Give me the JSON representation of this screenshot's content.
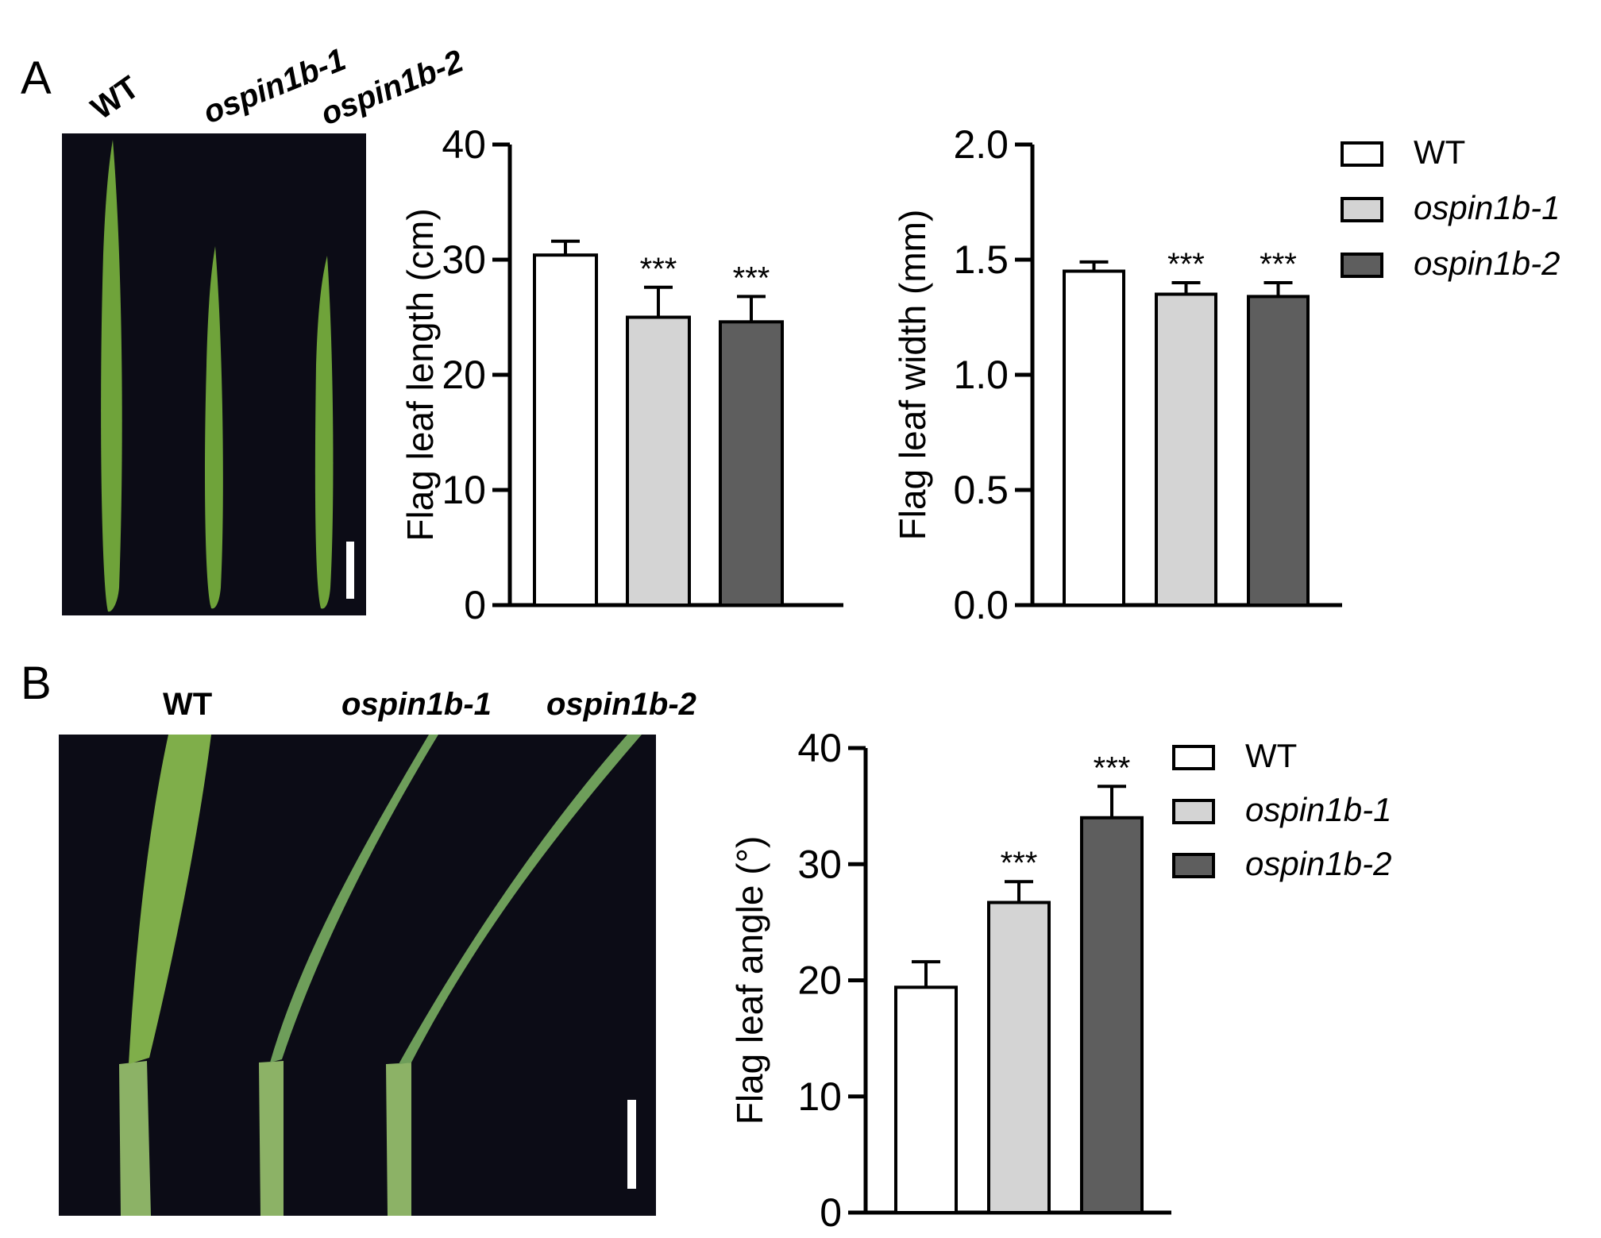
{
  "panels": {
    "A": "A",
    "B": "B"
  },
  "genotypes": [
    "WT",
    "ospin1b-1",
    "ospin1b-2"
  ],
  "colors": {
    "WT": "#ffffff",
    "ospin1b-1": "#d4d4d4",
    "ospin1b-2": "#5e5e5e",
    "photo_background": "#0c0c16",
    "leaf_green": "#6fa33a"
  },
  "chart_data": [
    {
      "type": "bar",
      "panel": "A",
      "categories": [
        "WT",
        "ospin1b-1",
        "ospin1b-2"
      ],
      "values": [
        30.4,
        25.0,
        24.6
      ],
      "errors": [
        1.2,
        2.6,
        2.2
      ],
      "significance": [
        "",
        "***",
        "***"
      ],
      "ylabel": "Flag leaf length (cm)",
      "ylim": [
        0,
        40
      ],
      "yticks": [
        "0",
        "10",
        "20",
        "30",
        "40"
      ],
      "legend": null
    },
    {
      "type": "bar",
      "panel": "A",
      "categories": [
        "WT",
        "ospin1b-1",
        "ospin1b-2"
      ],
      "values": [
        1.45,
        1.35,
        1.34
      ],
      "errors": [
        0.04,
        0.05,
        0.06
      ],
      "significance": [
        "",
        "***",
        "***"
      ],
      "ylabel": "Flag leaf width (mm)",
      "ylim": [
        0,
        2.0
      ],
      "yticks": [
        "0.0",
        "0.5",
        "1.0",
        "1.5",
        "2.0"
      ],
      "legend": "right"
    },
    {
      "type": "bar",
      "panel": "B",
      "categories": [
        "WT",
        "ospin1b-1",
        "ospin1b-2"
      ],
      "values": [
        19.4,
        26.7,
        34.0
      ],
      "errors": [
        2.2,
        1.8,
        2.7
      ],
      "significance": [
        "",
        "***",
        "***"
      ],
      "ylabel": "Flag leaf angle (°)",
      "ylim": [
        0,
        40
      ],
      "yticks": [
        "0",
        "10",
        "20",
        "30",
        "40"
      ],
      "legend": "right"
    }
  ]
}
